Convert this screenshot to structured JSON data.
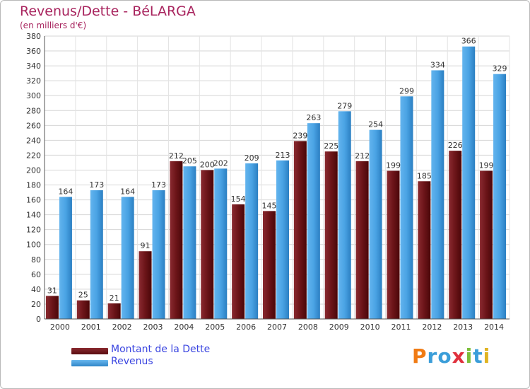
{
  "title": "Revenus/Dette - BéLARGA",
  "subtitle": "(en milliers d'€)",
  "colors": {
    "dette": "#6b1418",
    "revenus": "#3c97dc",
    "title": "#a8245e",
    "legend_text": "#3a45e0"
  },
  "legend": [
    {
      "label": "Montant de la Dette",
      "color": "#6b1418"
    },
    {
      "label": "Revenus",
      "color": "#3c97dc"
    }
  ],
  "logo": {
    "letters": [
      "P",
      "r",
      "o",
      "x",
      "i",
      "t",
      "i"
    ],
    "colors": [
      "#f07b14",
      "#3b9ed9",
      "#3b9ed9",
      "#e0303d",
      "#7cbf3a",
      "#3b9ed9",
      "#e0b422"
    ]
  },
  "chart_data": {
    "type": "bar",
    "categories": [
      "2000",
      "2001",
      "2002",
      "2003",
      "2004",
      "2005",
      "2006",
      "2007",
      "2008",
      "2009",
      "2010",
      "2011",
      "2012",
      "2013",
      "2014"
    ],
    "series": [
      {
        "name": "Montant de la Dette",
        "values": [
          31,
          25,
          21,
          91,
          212,
          200,
          154,
          145,
          239,
          225,
          212,
          199,
          185,
          226,
          199
        ],
        "labels": [
          "31",
          "25",
          "21",
          "91",
          "212",
          "200",
          "154",
          "145",
          "239",
          "225",
          "212",
          "199",
          "185",
          "226",
          "199"
        ]
      },
      {
        "name": "Revenus",
        "values": [
          164,
          173,
          164,
          173,
          205,
          202,
          209,
          213,
          263,
          279,
          254,
          299,
          334,
          366,
          329
        ],
        "labels": [
          "164",
          "173",
          "164",
          "173",
          "205",
          "202",
          "209",
          "213",
          "263",
          "279",
          "254",
          "299",
          "334",
          "366",
          "329"
        ]
      }
    ],
    "yticks": [
      "0",
      "20",
      "40",
      "60",
      "80",
      "100",
      "120",
      "140",
      "160",
      "180",
      "200",
      "220",
      "240",
      "260",
      "280",
      "300",
      "320",
      "340",
      "360",
      "380"
    ],
    "ylim": [
      0,
      380
    ],
    "grid": true
  }
}
